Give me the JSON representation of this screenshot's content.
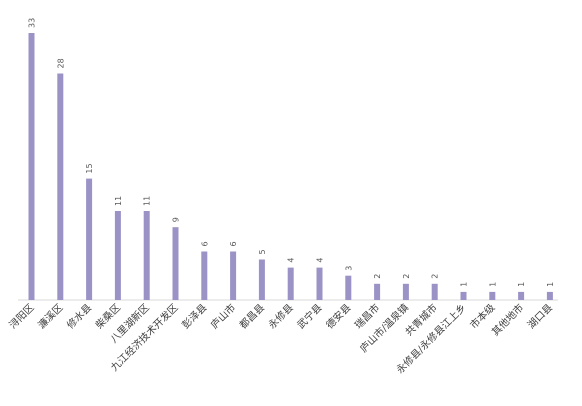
{
  "chart_data": {
    "type": "bar",
    "categories": [
      "浔阳区",
      "濂溪区",
      "修水县",
      "柴桑区",
      "八里湖新区",
      "九江经济技术开发区",
      "彭泽县",
      "庐山市",
      "都昌县",
      "永修县",
      "武宁县",
      "德安县",
      "瑞昌市",
      "庐山市/温泉镇",
      "共青城市",
      "永修县/永修县江上乡",
      "市本级",
      "其他地市",
      "湖口县"
    ],
    "values": [
      33,
      28,
      15,
      11,
      11,
      9,
      6,
      6,
      5,
      4,
      4,
      3,
      2,
      2,
      2,
      1,
      1,
      1,
      1
    ],
    "ylim": [
      0,
      35
    ],
    "grid": false,
    "legend": "none",
    "bar_color": "#9b93c6"
  }
}
